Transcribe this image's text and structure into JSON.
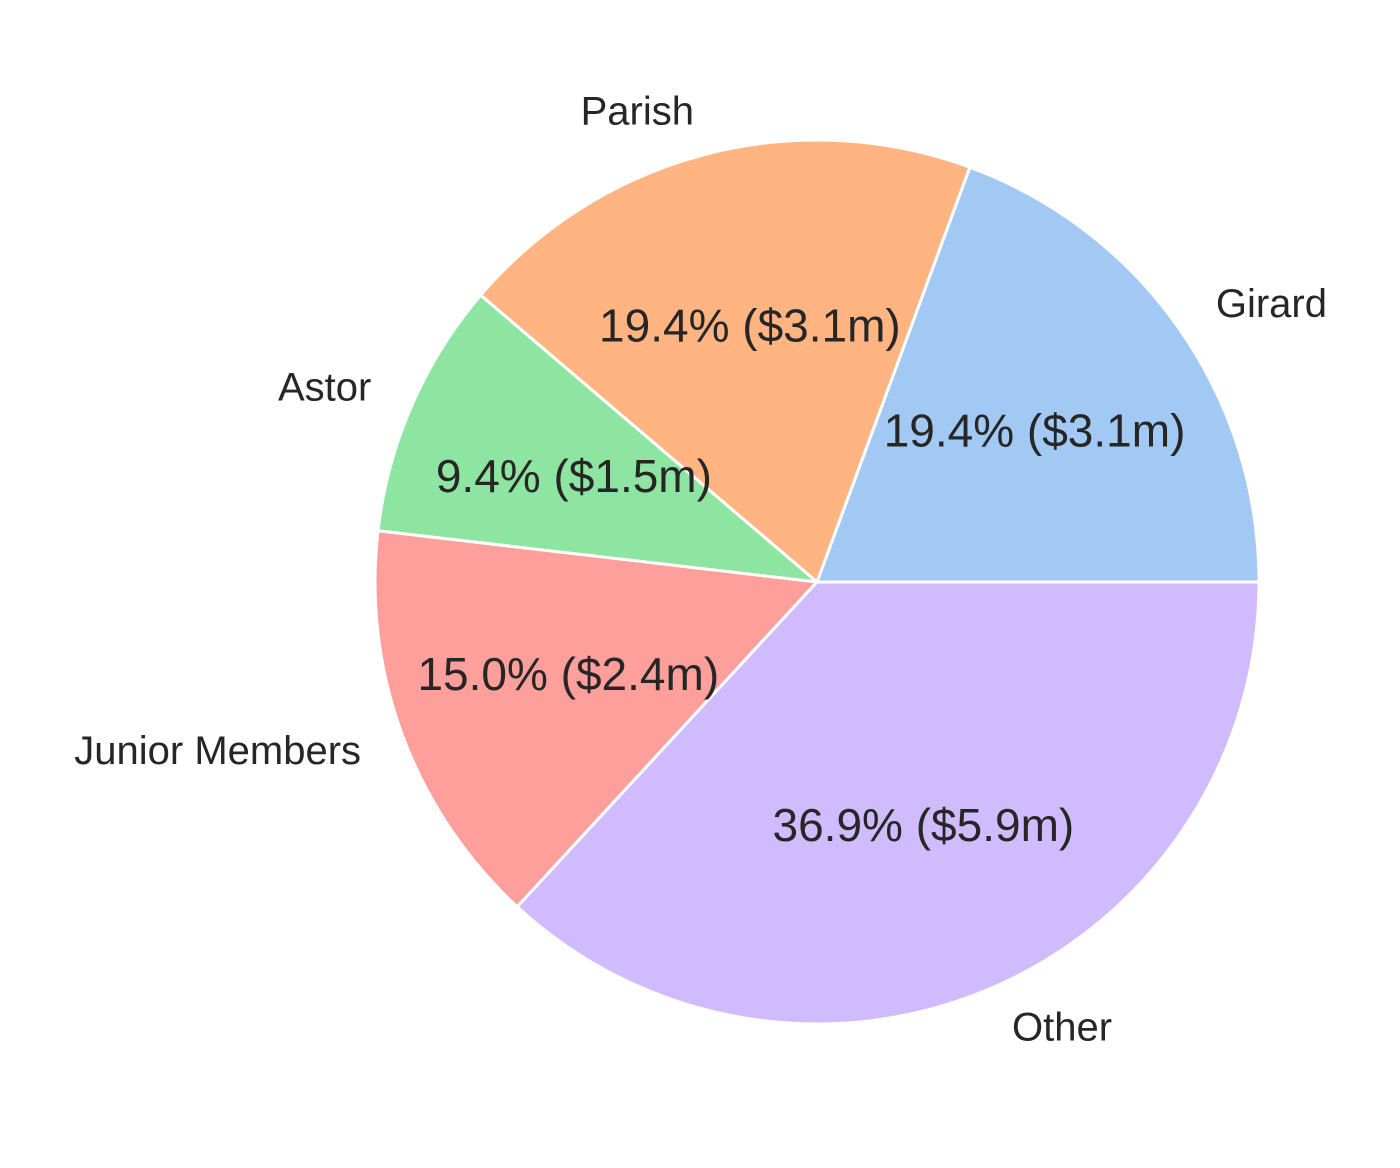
{
  "chart_data": {
    "type": "pie",
    "start_angle_deg": 0,
    "direction": "counterclockwise",
    "slices": [
      {
        "label": "Girard",
        "percent": 19.4,
        "value": 3.1,
        "display": "19.4% ($3.1m)",
        "color": "#a1c9f4"
      },
      {
        "label": "Parish",
        "percent": 19.4,
        "value": 3.1,
        "display": "19.4% ($3.1m)",
        "color": "#ffb482"
      },
      {
        "label": "Astor",
        "percent": 9.4,
        "value": 1.5,
        "display": "9.4% ($1.5m)",
        "color": "#8de5a1"
      },
      {
        "label": "Junior Members",
        "percent": 15.0,
        "value": 2.4,
        "display": "15.0% ($2.4m)",
        "color": "#ff9f9b"
      },
      {
        "label": "Other",
        "percent": 36.9,
        "value": 5.9,
        "display": "36.9% ($5.9m)",
        "color": "#d0bbff"
      }
    ]
  }
}
